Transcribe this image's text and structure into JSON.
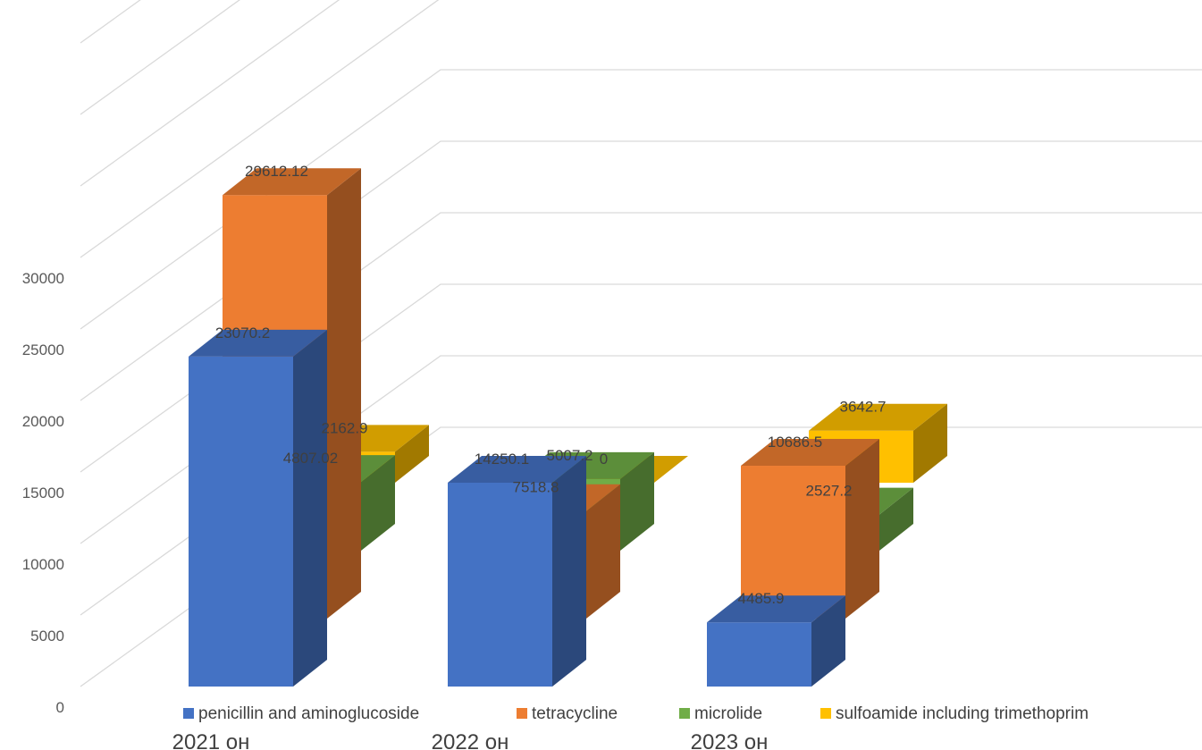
{
  "chart_data": {
    "type": "bar",
    "subtype": "3d-clustered-column",
    "title": "",
    "xlabel": "",
    "ylabel": "",
    "categories": [
      "2021 он",
      "2022 он",
      "2023 он"
    ],
    "series": [
      {
        "name": "penicillin and aminoglucoside",
        "color": "#4472C4",
        "values": [
          23070.2,
          14250.1,
          4485.9
        ]
      },
      {
        "name": "tetracycline",
        "color": "#ED7D31",
        "values": [
          29612.12,
          7518.8,
          10686.5
        ]
      },
      {
        "name": "microlide",
        "color": "#70AD47",
        "values": [
          4807.02,
          5007.2,
          2527.2
        ]
      },
      {
        "name": "sulfoamide including trimethoprim",
        "color": "#FFC000",
        "values": [
          2162.9,
          0,
          3642.7
        ]
      }
    ],
    "data_labels": [
      [
        "23070.2",
        "14250.1",
        "4485.9"
      ],
      [
        "29612.12",
        "7518.8",
        "10686.5"
      ],
      [
        "4807.02",
        "5007.2",
        "2527.2"
      ],
      [
        "2162.9",
        "0",
        "3642.7"
      ]
    ],
    "y_ticks": [
      "0",
      "5000",
      "10000",
      "15000",
      "20000",
      "25000",
      "30000"
    ],
    "ylim": [
      0,
      30000
    ],
    "grid": true,
    "legend_position": "bottom"
  }
}
